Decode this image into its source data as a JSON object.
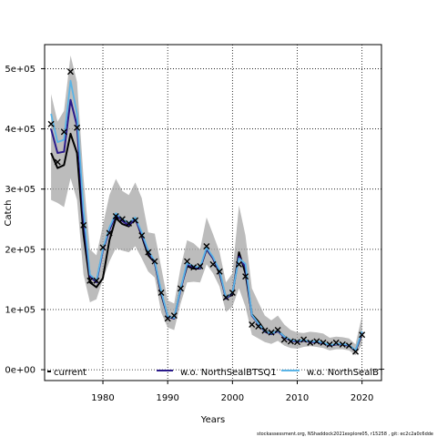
{
  "colors": {
    "band": "#a6a6a6",
    "current": "#000000",
    "tsq1": "#2a1a8a",
    "bt": "#5ab4e6",
    "obs": "#000000"
  },
  "footer": "stockassessment.org, NShaddock2021explore05, r15258 , git: ec2c2a0c6dde",
  "chart_data": {
    "type": "line",
    "title": "",
    "xlabel": "Years",
    "ylabel": "Catch",
    "xlim": [
      1971,
      2023
    ],
    "ylim": [
      -18000,
      540000
    ],
    "x_ticks": [
      1980,
      1990,
      2000,
      2010,
      2020
    ],
    "x_tick_labels": [
      "1980",
      "1990",
      "2000",
      "2010",
      "2020"
    ],
    "y_ticks": [
      0,
      100000,
      200000,
      300000,
      400000,
      500000
    ],
    "y_tick_labels": [
      "0e+00",
      "1e+05",
      "2e+05",
      "3e+05",
      "4e+05",
      "5e+05"
    ],
    "grid": true,
    "legend_position": "bottom",
    "legend": [
      "current",
      "w.o. NorthSealBTSQ1",
      "w.o. NorthSealBT"
    ],
    "years": [
      1972,
      1973,
      1974,
      1975,
      1976,
      1977,
      1978,
      1979,
      1980,
      1981,
      1982,
      1983,
      1984,
      1985,
      1986,
      1987,
      1988,
      1989,
      1990,
      1991,
      1992,
      1993,
      1994,
      1995,
      1996,
      1997,
      1998,
      1999,
      2000,
      2001,
      2002,
      2003,
      2004,
      2005,
      2006,
      2007,
      2008,
      2009,
      2010,
      2011,
      2012,
      2013,
      2014,
      2015,
      2016,
      2017,
      2018,
      2019,
      2020
    ],
    "band_lower": [
      282000,
      277000,
      270000,
      318000,
      282000,
      158000,
      112000,
      117000,
      150000,
      180000,
      202000,
      198000,
      195000,
      205000,
      185000,
      163000,
      153000,
      95000,
      70000,
      66000,
      110000,
      145000,
      146000,
      145000,
      175000,
      160000,
      138000,
      96000,
      105000,
      135000,
      105000,
      58000,
      52000,
      46000,
      43000,
      48000,
      40000,
      36000,
      35000,
      38000,
      39000,
      38000,
      36000,
      32000,
      34000,
      34000,
      32000,
      24000,
      42000
    ],
    "band_upper": [
      458000,
      412000,
      430000,
      522000,
      478000,
      320000,
      200000,
      190000,
      240000,
      290000,
      317000,
      297000,
      290000,
      311000,
      285000,
      228000,
      226000,
      170000,
      115000,
      110000,
      170000,
      215000,
      210000,
      200000,
      253000,
      225000,
      196000,
      145000,
      160000,
      273000,
      223000,
      135000,
      112000,
      90000,
      82000,
      90000,
      75000,
      66000,
      62000,
      61000,
      63000,
      62000,
      60000,
      53000,
      55000,
      54000,
      52000,
      42000,
      90000
    ],
    "series": [
      {
        "name": "current",
        "values": [
          360000,
          335000,
          340000,
          392000,
          360000,
          225000,
          145000,
          137000,
          152000,
          215000,
          252000,
          242000,
          238000,
          252000,
          222000,
          190000,
          178000,
          125000,
          88000,
          85000,
          135000,
          172000,
          168000,
          168000,
          200000,
          185000,
          160000,
          120000,
          124000,
          195000,
          160000,
          92000,
          80000,
          65000,
          60000,
          65000,
          55000,
          48000,
          47000,
          48000,
          47000,
          46000,
          44000,
          40000,
          42000,
          42000,
          40000,
          31000,
          60000
        ]
      },
      {
        "name": "w.o. NorthSealBTSQ1",
        "values": [
          400000,
          360000,
          362000,
          448000,
          405000,
          250000,
          155000,
          145000,
          198000,
          232000,
          258000,
          247000,
          240000,
          250000,
          225000,
          196000,
          178000,
          128000,
          88000,
          85000,
          133000,
          175000,
          170000,
          168000,
          201000,
          185000,
          163000,
          118000,
          127000,
          188000,
          170000,
          90000,
          76000,
          63000,
          59000,
          64000,
          54000,
          48000,
          47000,
          48000,
          46000,
          46000,
          44000,
          40000,
          42000,
          42000,
          40000,
          31000,
          62000
        ]
      },
      {
        "name": "w.o. NorthSealBT",
        "values": [
          425000,
          378000,
          382000,
          480000,
          425000,
          265000,
          158000,
          148000,
          200000,
          236000,
          260000,
          250000,
          244000,
          253000,
          228000,
          198000,
          180000,
          130000,
          89000,
          86000,
          135000,
          177000,
          172000,
          170000,
          203000,
          187000,
          165000,
          120000,
          128000,
          185000,
          176000,
          91000,
          77000,
          64000,
          60000,
          65000,
          55000,
          49000,
          48000,
          49000,
          47000,
          47000,
          45000,
          41000,
          43000,
          43000,
          41000,
          32000,
          64000
        ]
      }
    ],
    "observed": {
      "x": [
        1972,
        1973,
        1974,
        1975,
        1976,
        1977,
        1978,
        1979,
        1980,
        1981,
        1982,
        1983,
        1984,
        1985,
        1986,
        1987,
        1988,
        1989,
        1990,
        1991,
        1992,
        1993,
        1994,
        1995,
        1996,
        1997,
        1998,
        1999,
        2000,
        2001,
        2002,
        2003,
        2004,
        2005,
        2006,
        2007,
        2008,
        2009,
        2010,
        2011,
        2012,
        2013,
        2014,
        2015,
        2016,
        2017,
        2018,
        2019,
        2020
      ],
      "y": [
        408000,
        345000,
        395000,
        495000,
        402000,
        240000,
        148000,
        148000,
        203000,
        227000,
        255000,
        250000,
        243000,
        248000,
        223000,
        195000,
        180000,
        128000,
        85000,
        90000,
        135000,
        180000,
        170000,
        172000,
        205000,
        175000,
        163000,
        120000,
        128000,
        175000,
        155000,
        75000,
        72000,
        65000,
        62000,
        66000,
        50000,
        47000,
        46000,
        50000,
        45000,
        47000,
        45000,
        42000,
        45000,
        42000,
        40000,
        30000,
        58000
      ]
    }
  }
}
